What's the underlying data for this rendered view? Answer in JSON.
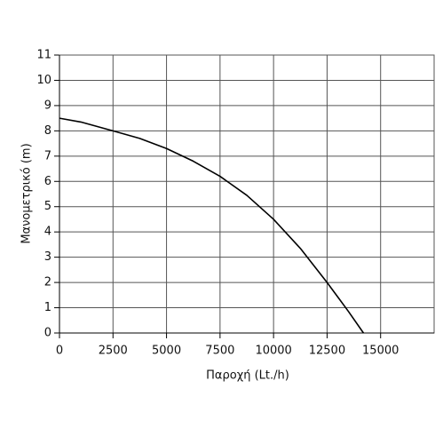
{
  "chart_data": {
    "type": "line",
    "x_label": "Παροχή (Lt./h)",
    "y_label": "Μανομετρικό  (m)",
    "x": [
      0,
      1000,
      2500,
      3750,
      5000,
      6250,
      7500,
      8750,
      10000,
      11250,
      12500,
      13500,
      14200
    ],
    "series": [
      {
        "color": "#000000",
        "values": [
          8.5,
          8.35,
          8.0,
          7.7,
          7.3,
          6.8,
          6.2,
          5.45,
          4.5,
          3.35,
          2.0,
          0.85,
          0
        ]
      }
    ],
    "xlim": [
      0,
      17500
    ],
    "xticks": [
      0,
      2500,
      5000,
      7500,
      10000,
      12500,
      15000
    ],
    "ylim": [
      0,
      11
    ],
    "yticks": [
      0,
      1,
      2,
      3,
      4,
      5,
      6,
      7,
      8,
      9,
      10,
      11
    ],
    "grid": true
  }
}
